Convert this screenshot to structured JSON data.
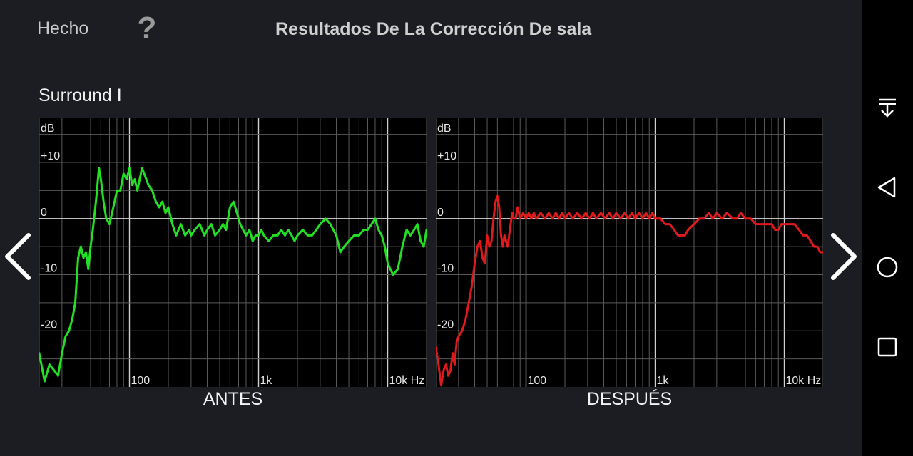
{
  "header": {
    "done_label": "Hecho",
    "help_label": "?",
    "title": "Resultados De La Corrección De sala"
  },
  "section": {
    "title": "Surround I"
  },
  "charts": [
    {
      "caption": "ANTES",
      "unit_label": "dB"
    },
    {
      "caption": "DESPUÉS",
      "unit_label": "dB"
    }
  ],
  "chart_data": [
    {
      "type": "line",
      "title": "ANTES",
      "ylabel": "dB",
      "xscale": "log",
      "xlim": [
        20,
        20000
      ],
      "ylim": [
        -30,
        18
      ],
      "yticks": [
        {
          "v": 10,
          "t": "+10"
        },
        {
          "v": 0,
          "t": "0"
        },
        {
          "v": -10,
          "t": "-10"
        },
        {
          "v": -20,
          "t": "-20"
        }
      ],
      "xticks": [
        {
          "v": 100,
          "t": "100"
        },
        {
          "v": 1000,
          "t": "1k"
        },
        {
          "v": 10000,
          "t": "10k Hz"
        }
      ],
      "color": "#22e022",
      "x": [
        20,
        22,
        24,
        26,
        28,
        30,
        32,
        34,
        36,
        38,
        40,
        42,
        44,
        46,
        48,
        50,
        52,
        55,
        58,
        60,
        63,
        66,
        70,
        75,
        80,
        85,
        90,
        95,
        100,
        105,
        110,
        115,
        120,
        125,
        130,
        135,
        140,
        150,
        160,
        170,
        180,
        190,
        200,
        215,
        230,
        250,
        270,
        290,
        300,
        320,
        350,
        380,
        400,
        430,
        460,
        500,
        530,
        560,
        600,
        640,
        680,
        720,
        760,
        800,
        850,
        900,
        950,
        1000,
        1050,
        1100,
        1200,
        1300,
        1400,
        1500,
        1600,
        1700,
        1800,
        1900,
        2000,
        2200,
        2400,
        2600,
        2800,
        3000,
        3300,
        3600,
        4000,
        4300,
        4600,
        5000,
        5500,
        6000,
        6500,
        7000,
        7500,
        8000,
        8500,
        9000,
        9500,
        10000,
        11000,
        12000,
        13000,
        14000,
        15000,
        16000,
        17000,
        18000,
        19000,
        20000
      ],
      "y": [
        -24,
        -29,
        -26,
        -27,
        -28,
        -24,
        -21,
        -20,
        -18,
        -15,
        -7,
        -5,
        -7,
        -6,
        -9,
        -5,
        -2,
        3,
        9,
        7,
        3,
        0,
        -1,
        2,
        5,
        5,
        8,
        7,
        9,
        6,
        7,
        5,
        7,
        9,
        8,
        7,
        6,
        5,
        3,
        2,
        3,
        1,
        2,
        -1,
        -3,
        -1,
        -3,
        -2,
        -3,
        -2,
        -1,
        -3,
        -2,
        -1,
        -3,
        -2,
        -1,
        -2,
        2,
        3,
        1,
        -1,
        -2,
        -3,
        -2,
        -4,
        -3,
        -3,
        -2,
        -3,
        -4,
        -3,
        -3,
        -2,
        -3,
        -2,
        -3,
        -4,
        -3,
        -2,
        -3,
        -3,
        -2,
        -1,
        0,
        -1,
        -3,
        -6,
        -5,
        -4,
        -3,
        -3,
        -2,
        -2,
        -1,
        0,
        -2,
        -3,
        -5,
        -8,
        -10,
        -9,
        -5,
        -2,
        -3,
        -2,
        -1,
        -4,
        -5,
        -2
      ]
    },
    {
      "type": "line",
      "title": "DESPUÉS",
      "ylabel": "dB",
      "xscale": "log",
      "xlim": [
        20,
        20000
      ],
      "ylim": [
        -30,
        18
      ],
      "yticks": [
        {
          "v": 10,
          "t": "+10"
        },
        {
          "v": 0,
          "t": "0"
        },
        {
          "v": -10,
          "t": "-10"
        },
        {
          "v": -20,
          "t": "-20"
        }
      ],
      "xticks": [
        {
          "v": 100,
          "t": "100"
        },
        {
          "v": 1000,
          "t": "1k"
        },
        {
          "v": 10000,
          "t": "10k Hz"
        }
      ],
      "color": "#e01a1a",
      "x": [
        20,
        21,
        22,
        23,
        24,
        25,
        26,
        27,
        28,
        29,
        30,
        32,
        34,
        36,
        38,
        40,
        42,
        44,
        46,
        48,
        50,
        52,
        54,
        56,
        58,
        60,
        62,
        64,
        66,
        68,
        70,
        72,
        75,
        78,
        80,
        83,
        86,
        90,
        95,
        100,
        105,
        110,
        115,
        120,
        130,
        140,
        150,
        160,
        170,
        180,
        190,
        200,
        215,
        230,
        250,
        270,
        290,
        310,
        330,
        350,
        380,
        410,
        440,
        470,
        500,
        540,
        580,
        620,
        660,
        700,
        750,
        800,
        850,
        900,
        950,
        1000,
        1100,
        1200,
        1300,
        1400,
        1500,
        1600,
        1700,
        1800,
        2000,
        2200,
        2400,
        2600,
        2800,
        3000,
        3300,
        3600,
        4000,
        4300,
        4600,
        5000,
        5500,
        6000,
        6500,
        7000,
        7500,
        8000,
        8500,
        9000,
        9500,
        10000,
        11000,
        12000,
        13000,
        14000,
        15000,
        16000,
        17000,
        18000,
        19000,
        20000
      ],
      "y": [
        -23,
        -26,
        -30,
        -27,
        -26,
        -28,
        -27,
        -24,
        -26,
        -22,
        -21,
        -20,
        -18,
        -15,
        -12,
        -8,
        -5,
        -4,
        -7,
        -8,
        -3,
        -5,
        -4,
        0,
        3,
        4,
        2,
        -3,
        -5,
        -3,
        -4,
        -5,
        -2,
        1,
        0,
        0,
        2,
        0,
        1,
        0,
        1,
        0,
        1,
        0,
        1,
        0,
        1,
        0,
        1,
        0,
        1,
        0,
        1,
        0,
        1,
        0,
        1,
        0,
        1,
        0,
        1,
        0,
        1,
        0,
        1,
        0,
        1,
        0,
        1,
        0,
        1,
        0,
        1,
        0,
        1,
        0,
        0,
        -1,
        -1,
        -2,
        -3,
        -3,
        -3,
        -2,
        -1,
        0,
        0,
        1,
        0,
        1,
        0,
        1,
        0,
        0,
        1,
        0,
        0,
        -1,
        -1,
        -1,
        -1,
        -1,
        -2,
        -2,
        -1,
        -1,
        -1,
        -1,
        -2,
        -3,
        -3,
        -4,
        -5,
        -5,
        -6,
        -6
      ]
    }
  ],
  "system_nav": {
    "icons": [
      "collapse-down-icon",
      "back-triangle-icon",
      "home-circle-icon",
      "recents-square-icon"
    ],
    "color": "#ffffff",
    "background": "#000000"
  }
}
